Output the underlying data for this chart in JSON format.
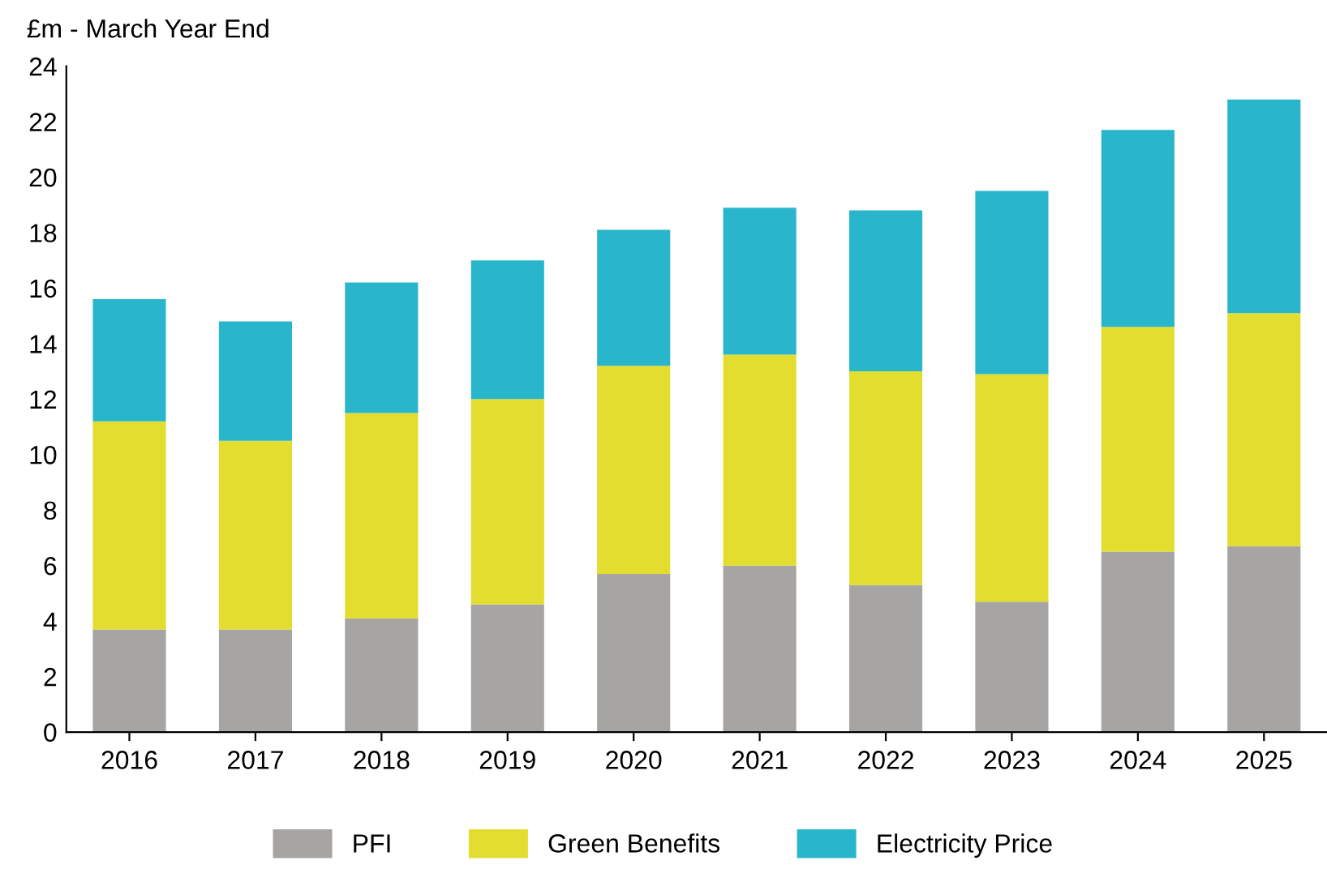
{
  "chart_data": {
    "type": "bar",
    "stacked": true,
    "ylabel": "£m - March Year End",
    "categories": [
      "2016",
      "2017",
      "2018",
      "2019",
      "2020",
      "2021",
      "2022",
      "2023",
      "2024",
      "2025"
    ],
    "series": [
      {
        "name": "PFI",
        "color": "#a6a5a3",
        "values": [
          3.7,
          3.7,
          4.1,
          4.6,
          5.7,
          6.0,
          5.3,
          4.7,
          6.5,
          6.7
        ]
      },
      {
        "name": "Green Benefits",
        "color": "#e2dd2e",
        "values": [
          7.5,
          6.8,
          7.4,
          7.4,
          7.5,
          7.6,
          7.7,
          8.2,
          8.1,
          8.4
        ]
      },
      {
        "name": "Electricity Price",
        "color": "#29b6cc",
        "values": [
          4.4,
          4.3,
          4.7,
          5.0,
          4.9,
          5.3,
          5.8,
          6.6,
          7.1,
          7.7
        ]
      }
    ],
    "ylim": [
      0,
      24
    ],
    "yticks": [
      0,
      2,
      4,
      6,
      8,
      10,
      12,
      14,
      16,
      18,
      20,
      22,
      24
    ],
    "grid": false,
    "legend": "bottom"
  }
}
